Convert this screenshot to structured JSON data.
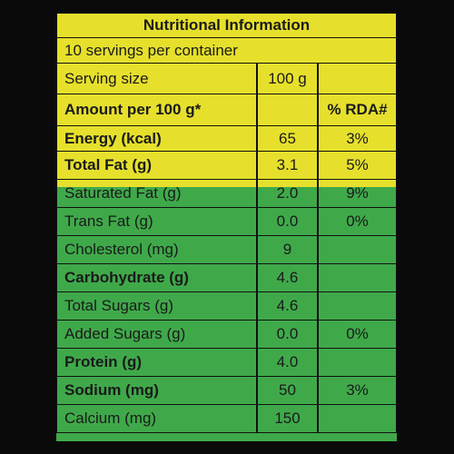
{
  "title": "Nutritional Information",
  "servings": "10 servings per container",
  "serving_size": {
    "label": "Serving size",
    "value": "100 g"
  },
  "header": {
    "label": "Amount per 100 g*",
    "rda": "% RDA#"
  },
  "rows": [
    {
      "nutrient": "Energy (kcal)",
      "amount": "65",
      "rda": "3%",
      "bold": true
    },
    {
      "nutrient": "Total Fat (g)",
      "amount": "3.1",
      "rda": "5%",
      "bold": true
    },
    {
      "nutrient": "Saturated Fat (g)",
      "amount": "2.0",
      "rda": "9%",
      "bold": false
    },
    {
      "nutrient": "Trans Fat (g)",
      "amount": "0.0",
      "rda": "0%",
      "bold": false
    },
    {
      "nutrient": "Cholesterol (mg)",
      "amount": "9",
      "bold": false
    },
    {
      "nutrient": "Carbohydrate (g)",
      "amount": "4.6",
      "bold": true
    },
    {
      "nutrient": "Total Sugars (g)",
      "amount": "4.6",
      "bold": false
    },
    {
      "nutrient": "Added Sugars (g)",
      "amount": "0.0",
      "rda": "0%",
      "bold": false
    },
    {
      "nutrient": "Protein (g)",
      "amount": "4.0",
      "bold": true
    },
    {
      "nutrient": "Sodium (mg)",
      "amount": "50",
      "rda": "3%",
      "bold": true
    },
    {
      "nutrient": "Calcium (mg)",
      "amount": "150",
      "bold": false
    }
  ]
}
